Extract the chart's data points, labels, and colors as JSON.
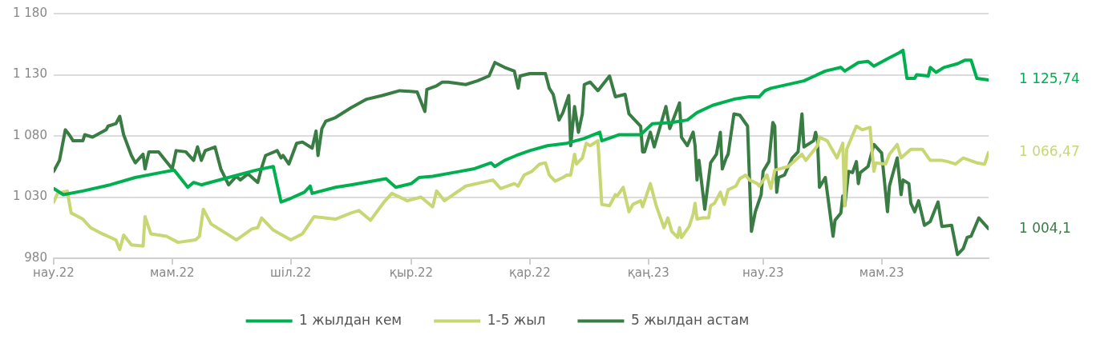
{
  "chart_data": {
    "type": "line",
    "xlim": [
      "2022-03-01",
      "2023-06-25"
    ],
    "xticks": [
      {
        "value": "2022-03-01",
        "label": "нау.22"
      },
      {
        "value": "2022-05-01",
        "label": "мам.22"
      },
      {
        "value": "2022-07-01",
        "label": "шіл.22"
      },
      {
        "value": "2022-09-01",
        "label": "қыр.22"
      },
      {
        "value": "2022-11-01",
        "label": "қар.22"
      },
      {
        "value": "2023-01-01",
        "label": "қаң.23"
      },
      {
        "value": "2023-03-01",
        "label": "нау.23"
      },
      {
        "value": "2023-05-01",
        "label": "мам.23"
      }
    ],
    "ylim": [
      980,
      1180
    ],
    "yticks": [
      {
        "value": 980,
        "label": "980"
      },
      {
        "value": 1030,
        "label": "1 030"
      },
      {
        "value": 1080,
        "label": "1 080"
      },
      {
        "value": 1130,
        "label": "1 130"
      },
      {
        "value": 1180,
        "label": "1 180"
      }
    ],
    "grid": "y",
    "legend": "bottom",
    "marker": "none",
    "line_style": "solid",
    "series": [
      {
        "name": "1 жылдан кем",
        "color": "#00b050",
        "x": [
          "2022-03-01",
          "2022-03-06",
          "2022-03-16",
          "2022-03-30",
          "2022-04-12",
          "2022-04-25",
          "2022-05-02",
          "2022-05-09",
          "2022-05-12",
          "2022-05-16",
          "2022-05-30",
          "2022-06-13",
          "2022-06-22",
          "2022-06-26",
          "2022-07-01",
          "2022-07-08",
          "2022-07-11",
          "2022-07-12",
          "2022-07-24",
          "2022-08-01",
          "2022-08-19",
          "2022-08-24",
          "2022-09-01",
          "2022-09-05",
          "2022-09-12",
          "2022-09-26",
          "2022-10-03",
          "2022-10-12",
          "2022-10-14",
          "2022-10-19",
          "2022-10-25",
          "2022-11-01",
          "2022-11-10",
          "2022-11-20",
          "2022-11-29",
          "2022-12-07",
          "2022-12-08",
          "2022-12-17",
          "2022-12-28",
          "2023-01-03",
          "2023-01-13",
          "2023-01-21",
          "2023-01-26",
          "2023-02-03",
          "2023-02-14",
          "2023-02-22",
          "2023-02-27",
          "2023-03-02",
          "2023-03-05",
          "2023-03-22",
          "2023-04-02",
          "2023-04-10",
          "2023-04-12",
          "2023-04-19",
          "2023-04-24",
          "2023-04-27",
          "2023-05-04",
          "2023-05-10",
          "2023-05-12",
          "2023-05-14",
          "2023-05-18",
          "2023-05-19",
          "2023-05-25",
          "2023-05-26",
          "2023-05-29",
          "2023-06-02",
          "2023-06-09",
          "2023-06-13",
          "2023-06-16",
          "2023-06-19",
          "2023-06-25"
        ],
        "values": [
          1037,
          1032,
          1035,
          1040,
          1046,
          1050,
          1052,
          1038,
          1042,
          1040,
          1046,
          1052,
          1055,
          1026,
          1029,
          1034,
          1039,
          1033,
          1038,
          1040,
          1045,
          1038,
          1041,
          1046,
          1047,
          1051,
          1053,
          1058,
          1055,
          1060,
          1064,
          1068,
          1072,
          1074,
          1078,
          1083,
          1076,
          1081,
          1081,
          1090,
          1091,
          1093,
          1099,
          1105,
          1110,
          1112,
          1112,
          1117,
          1119,
          1125,
          1133,
          1136,
          1133,
          1140,
          1141,
          1137,
          1143,
          1148,
          1150,
          1127,
          1127,
          1130,
          1129,
          1136,
          1132,
          1136,
          1139,
          1142,
          1142,
          1127,
          1125.74
        ]
      },
      {
        "name": "1-5 жыл",
        "color": "#c8d774",
        "x": [
          "2022-03-01",
          "2022-03-03",
          "2022-03-08",
          "2022-03-10",
          "2022-03-16",
          "2022-03-20",
          "2022-03-26",
          "2022-04-02",
          "2022-04-04",
          "2022-04-06",
          "2022-04-10",
          "2022-04-16",
          "2022-04-17",
          "2022-04-20",
          "2022-04-28",
          "2022-05-04",
          "2022-05-13",
          "2022-05-15",
          "2022-05-17",
          "2022-05-21",
          "2022-06-03",
          "2022-06-11",
          "2022-06-14",
          "2022-06-16",
          "2022-06-22",
          "2022-07-01",
          "2022-07-07",
          "2022-07-13",
          "2022-07-24",
          "2022-08-01",
          "2022-08-05",
          "2022-08-11",
          "2022-08-18",
          "2022-08-22",
          "2022-08-30",
          "2022-09-06",
          "2022-09-12",
          "2022-09-14",
          "2022-09-18",
          "2022-09-29",
          "2022-10-13",
          "2022-10-17",
          "2022-10-24",
          "2022-10-26",
          "2022-10-29",
          "2022-11-02",
          "2022-11-06",
          "2022-11-09",
          "2022-11-11",
          "2022-11-14",
          "2022-11-18",
          "2022-11-20",
          "2022-11-22",
          "2022-11-24",
          "2022-11-25",
          "2022-11-28",
          "2022-11-30",
          "2022-12-02",
          "2022-12-06",
          "2022-12-08",
          "2022-12-12",
          "2022-12-15",
          "2022-12-16",
          "2022-12-19",
          "2022-12-22",
          "2022-12-24",
          "2022-12-28",
          "2022-12-29",
          "2023-01-02",
          "2023-01-05",
          "2023-01-09",
          "2023-01-11",
          "2023-01-13",
          "2023-01-16",
          "2023-01-17",
          "2023-01-18",
          "2023-01-22",
          "2023-01-24",
          "2023-01-25",
          "2023-01-26",
          "2023-01-29",
          "2023-02-01",
          "2023-02-02",
          "2023-02-04",
          "2023-02-07",
          "2023-02-09",
          "2023-02-11",
          "2023-02-15",
          "2023-02-17",
          "2023-02-20",
          "2023-02-22",
          "2023-02-26",
          "2023-02-27",
          "2023-03-03",
          "2023-03-05",
          "2023-03-07",
          "2023-03-14",
          "2023-03-21",
          "2023-03-23",
          "2023-03-29",
          "2023-03-30",
          "2023-04-03",
          "2023-04-08",
          "2023-04-11",
          "2023-04-12",
          "2023-04-13",
          "2023-04-18",
          "2023-04-21",
          "2023-04-25",
          "2023-04-27",
          "2023-04-28",
          "2023-05-03",
          "2023-05-05",
          "2023-05-09",
          "2023-05-11",
          "2023-05-16",
          "2023-05-22",
          "2023-05-26",
          "2023-06-01",
          "2023-06-04",
          "2023-06-08",
          "2023-06-12",
          "2023-06-19",
          "2023-06-23",
          "2023-06-25"
        ],
        "values": [
          1026,
          1033,
          1035,
          1017,
          1012,
          1005,
          1000,
          995,
          987,
          999,
          991,
          990,
          1014,
          1000,
          998,
          993,
          995,
          998,
          1020,
          1008,
          995,
          1004,
          1005,
          1013,
          1003,
          995,
          1000,
          1014,
          1012,
          1017,
          1019,
          1011,
          1026,
          1033,
          1027,
          1030,
          1022,
          1035,
          1027,
          1039,
          1044,
          1037,
          1041,
          1039,
          1048,
          1051,
          1057,
          1058,
          1048,
          1043,
          1046,
          1048,
          1048,
          1065,
          1057,
          1062,
          1074,
          1072,
          1076,
          1024,
          1023,
          1032,
          1031,
          1038,
          1018,
          1024,
          1027,
          1022,
          1041,
          1023,
          1005,
          1013,
          1002,
          997,
          1005,
          997,
          1006,
          1016,
          1025,
          1012,
          1013,
          1013,
          1023,
          1025,
          1034,
          1024,
          1036,
          1039,
          1045,
          1048,
          1044,
          1041,
          1039,
          1048,
          1037,
          1052,
          1055,
          1065,
          1060,
          1072,
          1079,
          1076,
          1062,
          1074,
          1023,
          1069,
          1088,
          1085,
          1087,
          1051,
          1058,
          1057,
          1065,
          1073,
          1062,
          1069,
          1069,
          1060,
          1060,
          1059,
          1057,
          1062,
          1058,
          1057,
          1066.47
        ]
      },
      {
        "name": "5 жылдан астам",
        "color": "#3a7d44",
        "x": [
          "2022-03-01",
          "2022-03-04",
          "2022-03-07",
          "2022-03-09",
          "2022-03-11",
          "2022-03-16",
          "2022-03-17",
          "2022-03-21",
          "2022-03-28",
          "2022-03-29",
          "2022-04-02",
          "2022-04-04",
          "2022-04-06",
          "2022-04-10",
          "2022-04-12",
          "2022-04-16",
          "2022-04-17",
          "2022-04-19",
          "2022-04-24",
          "2022-05-01",
          "2022-05-03",
          "2022-05-08",
          "2022-05-12",
          "2022-05-14",
          "2022-05-16",
          "2022-05-18",
          "2022-05-23",
          "2022-05-26",
          "2022-05-30",
          "2022-06-03",
          "2022-06-05",
          "2022-06-09",
          "2022-06-14",
          "2022-06-16",
          "2022-06-18",
          "2022-06-24",
          "2022-06-26",
          "2022-06-27",
          "2022-06-30",
          "2022-07-04",
          "2022-07-07",
          "2022-07-12",
          "2022-07-14",
          "2022-07-15",
          "2022-07-17",
          "2022-07-19",
          "2022-07-24",
          "2022-08-01",
          "2022-08-09",
          "2022-08-17",
          "2022-08-26",
          "2022-09-04",
          "2022-09-08",
          "2022-09-09",
          "2022-09-14",
          "2022-09-17",
          "2022-09-20",
          "2022-09-29",
          "2022-10-05",
          "2022-10-11",
          "2022-10-14",
          "2022-10-19",
          "2022-10-24",
          "2022-10-26",
          "2022-10-27",
          "2022-11-01",
          "2022-11-09",
          "2022-11-11",
          "2022-11-13",
          "2022-11-16",
          "2022-11-18",
          "2022-11-21",
          "2022-11-22",
          "2022-11-24",
          "2022-11-26",
          "2022-11-28",
          "2022-11-29",
          "2022-12-02",
          "2022-12-06",
          "2022-12-12",
          "2022-12-15",
          "2022-12-20",
          "2022-12-22",
          "2022-12-28",
          "2022-12-29",
          "2022-12-30",
          "2023-01-02",
          "2023-01-04",
          "2023-01-10",
          "2023-01-12",
          "2023-01-17",
          "2023-01-18",
          "2023-01-21",
          "2023-01-24",
          "2023-01-25",
          "2023-01-26",
          "2023-01-27",
          "2023-01-30",
          "2023-02-02",
          "2023-02-05",
          "2023-02-07",
          "2023-02-08",
          "2023-02-10",
          "2023-02-11",
          "2023-02-14",
          "2023-02-17",
          "2023-02-21",
          "2023-02-23",
          "2023-02-25",
          "2023-02-28",
          "2023-03-01",
          "2023-03-04",
          "2023-03-06",
          "2023-03-07",
          "2023-03-08",
          "2023-03-09",
          "2023-03-12",
          "2023-03-16",
          "2023-03-19",
          "2023-03-21",
          "2023-03-22",
          "2023-03-27",
          "2023-03-28",
          "2023-03-29",
          "2023-03-30",
          "2023-04-02",
          "2023-04-06",
          "2023-04-07",
          "2023-04-10",
          "2023-04-11",
          "2023-04-12",
          "2023-04-14",
          "2023-04-16",
          "2023-04-18",
          "2023-04-19",
          "2023-04-20",
          "2023-04-24",
          "2023-04-27",
          "2023-05-01",
          "2023-05-04",
          "2023-05-05",
          "2023-05-09",
          "2023-05-11",
          "2023-05-12",
          "2023-05-15",
          "2023-05-16",
          "2023-05-18",
          "2023-05-20",
          "2023-05-23",
          "2023-05-26",
          "2023-05-30",
          "2023-06-01",
          "2023-06-06",
          "2023-06-09",
          "2023-06-12",
          "2023-06-14",
          "2023-06-16",
          "2023-06-20",
          "2023-06-25"
        ],
        "values": [
          1051,
          1060,
          1085,
          1081,
          1076,
          1076,
          1081,
          1079,
          1085,
          1088,
          1090,
          1096,
          1081,
          1064,
          1058,
          1065,
          1053,
          1067,
          1067,
          1053,
          1068,
          1067,
          1060,
          1071,
          1060,
          1068,
          1071,
          1053,
          1040,
          1047,
          1044,
          1049,
          1042,
          1054,
          1064,
          1068,
          1062,
          1064,
          1057,
          1074,
          1075,
          1070,
          1084,
          1064,
          1086,
          1092,
          1095,
          1103,
          1110,
          1113,
          1117,
          1116,
          1100,
          1118,
          1121,
          1124,
          1124,
          1122,
          1125,
          1129,
          1140,
          1136,
          1133,
          1119,
          1129,
          1131,
          1131,
          1119,
          1114,
          1093,
          1099,
          1113,
          1072,
          1104,
          1083,
          1098,
          1122,
          1124,
          1117,
          1129,
          1112,
          1114,
          1098,
          1088,
          1067,
          1067,
          1083,
          1071,
          1104,
          1086,
          1107,
          1079,
          1072,
          1083,
          1072,
          1044,
          1060,
          1020,
          1058,
          1065,
          1083,
          1053,
          1062,
          1065,
          1098,
          1097,
          1088,
          1002,
          1018,
          1032,
          1051,
          1059,
          1091,
          1088,
          1034,
          1046,
          1048,
          1062,
          1067,
          1098,
          1071,
          1076,
          1083,
          1076,
          1038,
          1046,
          998,
          1011,
          1017,
          1031,
          1023,
          1051,
          1050,
          1059,
          1041,
          1050,
          1055,
          1073,
          1066,
          1018,
          1039,
          1062,
          1032,
          1044,
          1041,
          1025,
          1018,
          1027,
          1007,
          1010,
          1026,
          1006,
          1007,
          983,
          988,
          997,
          998,
          1013,
          1004.1
        ]
      }
    ],
    "annotations": [
      {
        "text": "1 125,74",
        "x": "2023-06-25",
        "y": 1125.74
      },
      {
        "text": "1 066,47",
        "x": "2023-06-25",
        "y": 1066.47
      },
      {
        "text": "1 004,1",
        "x": "2023-06-25",
        "y": 1004.1
      }
    ]
  }
}
